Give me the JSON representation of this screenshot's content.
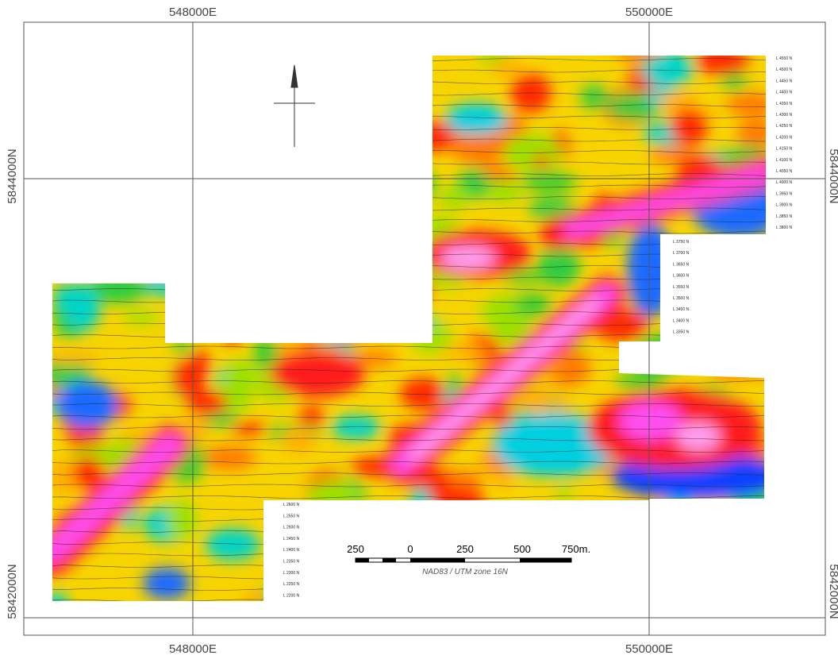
{
  "grid_labels": {
    "top": [
      "548000E",
      "550000E"
    ],
    "bottom": [
      "548000E",
      "550000E"
    ],
    "left": [
      "5844000N",
      "5842000N"
    ],
    "right": [
      "5844000N",
      "5842000N"
    ]
  },
  "scale_bar": {
    "labels": [
      "250",
      "0",
      "250",
      "500",
      "750m."
    ],
    "datum": "NAD83 / UTM zone 16N"
  },
  "line_labels": {
    "north_block": [
      "L 4550 N",
      "L 4500 N",
      "L 4450 N",
      "L 4400 N",
      "L 4350 N",
      "L 4300 N",
      "L 4250 N",
      "L 4200 N",
      "L 4150 N",
      "L 4100 N",
      "L 4050 N",
      "L 4000 N",
      "L 3950 N",
      "L 3900 N",
      "L 3850 N",
      "L 3800 N"
    ],
    "middle_block": [
      "L 3750 N",
      "L 3700 N",
      "L 3650 N",
      "L 3600 N",
      "L 3550 N",
      "L 3500 N",
      "L 3450 N",
      "L 3400 N",
      "L 3350 N"
    ],
    "south_block": [
      "L 2600 N",
      "L 2550 N",
      "L 2500 N",
      "L 2450 N",
      "L 2400 N",
      "L 2350 N",
      "L 2300 N",
      "L 2250 N",
      "L 2200 N"
    ]
  }
}
